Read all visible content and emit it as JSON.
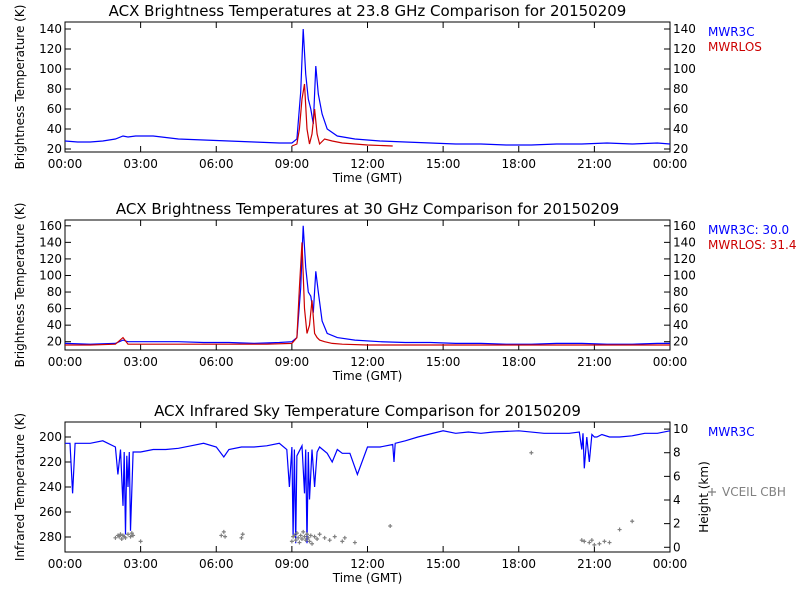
{
  "chart_data": [
    {
      "type": "line",
      "title": "ACX  Brightness Temperatures at 23.8 GHz Comparison for 20150209",
      "xlabel": "Time (GMT)",
      "ylabel": "Brightness Temperature (K)",
      "xticks": [
        "00:00",
        "03:00",
        "06:00",
        "09:00",
        "12:00",
        "15:00",
        "18:00",
        "21:00",
        "00:00"
      ],
      "xlim": [
        0,
        24
      ],
      "ylim": [
        17,
        147
      ],
      "yticks": [
        20,
        40,
        60,
        80,
        100,
        120,
        140
      ],
      "y2ticks": [
        20,
        40,
        60,
        80,
        100,
        120,
        140
      ],
      "legend": "right",
      "series": [
        {
          "name": "MWR3C",
          "color": "#0000ff",
          "x": [
            0,
            0.5,
            1.0,
            1.5,
            2.0,
            2.3,
            2.5,
            2.8,
            3.5,
            4.5,
            5.5,
            6.5,
            7.5,
            8.5,
            9.0,
            9.2,
            9.35,
            9.45,
            9.55,
            9.65,
            9.75,
            9.85,
            9.95,
            10.05,
            10.2,
            10.4,
            10.8,
            11.5,
            12.5,
            13.5,
            14.5,
            15.5,
            16.5,
            17.5,
            18.5,
            19.5,
            20.5,
            21.5,
            22.5,
            23.5,
            24
          ],
          "y": [
            28,
            27,
            27,
            28,
            30,
            33,
            32,
            33,
            33,
            30,
            29,
            28,
            27,
            26,
            26,
            30,
            77,
            140,
            95,
            70,
            60,
            45,
            103,
            75,
            55,
            40,
            33,
            30,
            28,
            27,
            26,
            25,
            25,
            24,
            24,
            25,
            25,
            26,
            25,
            26,
            25
          ]
        },
        {
          "name": "MWRLOS",
          "color": "#cc0000",
          "x": [
            9.0,
            9.2,
            9.3,
            9.4,
            9.5,
            9.6,
            9.7,
            9.8,
            9.9,
            10.0,
            10.1,
            10.3,
            10.6,
            11.0,
            12.0,
            13.0
          ],
          "y": [
            23,
            25,
            40,
            70,
            85,
            40,
            25,
            35,
            60,
            35,
            25,
            30,
            28,
            26,
            24,
            23
          ]
        }
      ]
    },
    {
      "type": "line",
      "title": "ACX  Brightness Temperatures at 30 GHz Comparison for 20150209",
      "xlabel": "Time (GMT)",
      "ylabel": "Brightness Temperature (K)",
      "xticks": [
        "00:00",
        "03:00",
        "06:00",
        "09:00",
        "12:00",
        "15:00",
        "18:00",
        "21:00",
        "00:00"
      ],
      "xlim": [
        0,
        24
      ],
      "ylim": [
        10,
        167
      ],
      "yticks": [
        20,
        40,
        60,
        80,
        100,
        120,
        140,
        160
      ],
      "y2ticks": [
        20,
        40,
        60,
        80,
        100,
        120,
        140,
        160
      ],
      "legend": "right",
      "series": [
        {
          "name": "MWR3C: 30.0",
          "color": "#0000ff",
          "x": [
            0,
            1.0,
            2.0,
            2.3,
            2.5,
            2.8,
            3.5,
            4.5,
            5.5,
            6.5,
            7.5,
            8.5,
            9.0,
            9.2,
            9.35,
            9.45,
            9.55,
            9.65,
            9.75,
            9.85,
            9.95,
            10.05,
            10.2,
            10.4,
            10.8,
            11.5,
            12.5,
            13.5,
            14.5,
            15.5,
            16.5,
            17.5,
            18.5,
            19.5,
            20.5,
            21.5,
            22.5,
            23.5,
            24
          ],
          "y": [
            18,
            17,
            18,
            22,
            20,
            20,
            20,
            20,
            19,
            19,
            18,
            19,
            20,
            25,
            85,
            160,
            110,
            80,
            75,
            55,
            105,
            80,
            45,
            30,
            25,
            22,
            20,
            19,
            19,
            18,
            18,
            17,
            17,
            18,
            18,
            17,
            17,
            18,
            18
          ]
        },
        {
          "name": "MWRLOS: 31.4",
          "color": "#cc0000",
          "x": [
            0,
            1.0,
            2.0,
            2.3,
            2.5,
            3.0,
            4.0,
            5.0,
            6.0,
            7.0,
            8.0,
            9.0,
            9.2,
            9.3,
            9.4,
            9.5,
            9.6,
            9.7,
            9.8,
            9.9,
            10.0,
            10.1,
            10.3,
            10.6,
            11.0,
            12.0,
            14.0,
            16.0,
            18.0,
            20.0,
            22.0,
            24
          ],
          "y": [
            16,
            16,
            17,
            25,
            17,
            17,
            17,
            17,
            17,
            17,
            17,
            18,
            25,
            85,
            140,
            60,
            30,
            40,
            70,
            30,
            25,
            22,
            20,
            18,
            17,
            16,
            16,
            16,
            16,
            16,
            16,
            16
          ]
        }
      ]
    },
    {
      "type": "line",
      "title": "ACX  Infrared Sky Temperature Comparison for 20150209",
      "xlabel": "Time (GMT)",
      "ylabel": "Infrared Temperature (K)",
      "y2label": "Height (km)",
      "xticks": [
        "00:00",
        "03:00",
        "06:00",
        "09:00",
        "12:00",
        "15:00",
        "18:00",
        "21:00",
        "00:00"
      ],
      "xlim": [
        0,
        24
      ],
      "ylim": [
        292,
        188
      ],
      "yticks": [
        200,
        220,
        240,
        260,
        280
      ],
      "y2lim": [
        -0.4,
        10.6
      ],
      "y2ticks": [
        0,
        2,
        4,
        6,
        8,
        10
      ],
      "legend": "right",
      "series": [
        {
          "name": "MWR3C",
          "color": "#0000ff",
          "x": [
            0,
            0.2,
            0.3,
            0.4,
            0.5,
            1.0,
            1.5,
            2.0,
            2.1,
            2.2,
            2.3,
            2.35,
            2.4,
            2.45,
            2.5,
            2.55,
            2.6,
            2.7,
            3.0,
            3.5,
            4.0,
            4.5,
            5.0,
            5.5,
            6.0,
            6.3,
            6.5,
            7.0,
            7.5,
            8.0,
            8.5,
            8.8,
            8.9,
            9.0,
            9.05,
            9.1,
            9.15,
            9.2,
            9.4,
            9.5,
            9.55,
            9.6,
            9.65,
            9.7,
            9.8,
            9.9,
            10.0,
            10.1,
            10.4,
            10.6,
            10.8,
            11.0,
            11.3,
            11.6,
            12.0,
            12.5,
            13.0,
            13.05,
            13.1,
            13.5,
            14.0,
            15.0,
            15.5,
            16.0,
            16.5,
            17.0,
            18.0,
            19.0,
            20.0,
            20.4,
            20.5,
            20.55,
            20.6,
            20.7,
            20.8,
            20.9,
            21.0,
            21.1,
            21.3,
            21.6,
            22.0,
            22.5,
            23.0,
            23.5,
            24
          ],
          "y": [
            205,
            205,
            245,
            205,
            205,
            205,
            203,
            208,
            230,
            210,
            255,
            212,
            278,
            215,
            240,
            212,
            275,
            212,
            212,
            210,
            210,
            209,
            207,
            205,
            208,
            216,
            210,
            208,
            208,
            207,
            205,
            210,
            240,
            208,
            280,
            210,
            285,
            215,
            207,
            245,
            210,
            285,
            212,
            250,
            210,
            240,
            212,
            208,
            213,
            220,
            210,
            213,
            213,
            230,
            208,
            208,
            206,
            220,
            205,
            203,
            200,
            195,
            197,
            196,
            197,
            196,
            195,
            197,
            197,
            196,
            210,
            197,
            225,
            200,
            220,
            198,
            200,
            200,
            198,
            200,
            200,
            199,
            197,
            197,
            195
          ]
        },
        {
          "name": "VCEIL CBH",
          "color": "#808080",
          "marker": "+",
          "axis": "right",
          "x": [
            2.0,
            2.1,
            2.15,
            2.2,
            2.25,
            2.3,
            2.35,
            2.4,
            2.5,
            2.6,
            2.65,
            2.7,
            3.0,
            6.2,
            6.3,
            6.35,
            7.0,
            7.05,
            9.0,
            9.05,
            9.1,
            9.15,
            9.2,
            9.25,
            9.3,
            9.35,
            9.4,
            9.45,
            9.5,
            9.55,
            9.6,
            9.65,
            9.7,
            9.75,
            9.8,
            9.9,
            10.0,
            10.1,
            10.3,
            10.5,
            10.7,
            11.0,
            11.1,
            11.5,
            12.9,
            18.5,
            20.5,
            20.6,
            20.8,
            20.9,
            21.0,
            21.2,
            21.4,
            21.6,
            22.0,
            22.5
          ],
          "y": [
            0.8,
            1.0,
            0.9,
            1.1,
            0.7,
            1.0,
            0.9,
            0.8,
            1.1,
            0.9,
            1.2,
            1.0,
            0.5,
            1.0,
            1.3,
            0.9,
            0.8,
            1.1,
            0.5,
            0.9,
            1.0,
            0.6,
            1.2,
            0.8,
            0.4,
            1.0,
            0.7,
            1.3,
            0.9,
            0.6,
            1.1,
            0.8,
            0.5,
            1.0,
            0.3,
            0.9,
            0.7,
            1.1,
            0.8,
            0.6,
            0.9,
            0.5,
            0.8,
            0.4,
            1.8,
            8.0,
            0.6,
            0.5,
            0.4,
            0.6,
            0.2,
            0.3,
            0.5,
            0.4,
            1.5,
            2.2
          ]
        }
      ]
    }
  ]
}
